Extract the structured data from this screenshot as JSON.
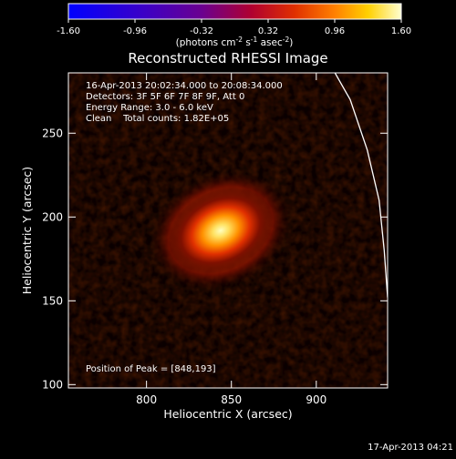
{
  "colorbar": {
    "ticks": [
      "-1.60",
      "-0.96",
      "-0.32",
      "0.32",
      "0.96",
      "1.60"
    ],
    "unit_label": "(photons cm",
    "unit_sup1": "-2",
    "unit_mid": " s",
    "unit_sup2": "-1",
    "unit_end": " asec",
    "unit_sup3": "-2",
    "unit_close": ")"
  },
  "annotations": {
    "time_range": "16-Apr-2013 20:02:34.000 to 20:08:34.000",
    "detectors": "Detectors: 3F 5F 6F 7F 8F 9F, Att 0",
    "energy": "Energy Range: 3.0 - 6.0 keV",
    "clean": "Clean    Total counts: 1.82E+05",
    "peak": "Position of Peak = [848,193]"
  },
  "footer": {
    "date": "17-Apr-2013 04:21"
  },
  "chart_data": {
    "type": "heatmap",
    "title": "Reconstructed RHESSI Image",
    "xlabel": "Heliocentric X (arcsec)",
    "ylabel": "Heliocentric Y (arcsec)",
    "xlim": [
      754,
      942
    ],
    "ylim": [
      98,
      286
    ],
    "xticks": [
      800,
      850,
      900
    ],
    "yticks": [
      100,
      150,
      200,
      250
    ],
    "colorbar_range": [
      -1.6,
      1.6
    ],
    "source_peak": [
      848,
      193
    ],
    "limb_curve": [
      [
        911,
        286
      ],
      [
        920,
        270
      ],
      [
        930,
        240
      ],
      [
        937,
        210
      ],
      [
        940,
        180
      ],
      [
        942,
        152
      ]
    ]
  }
}
